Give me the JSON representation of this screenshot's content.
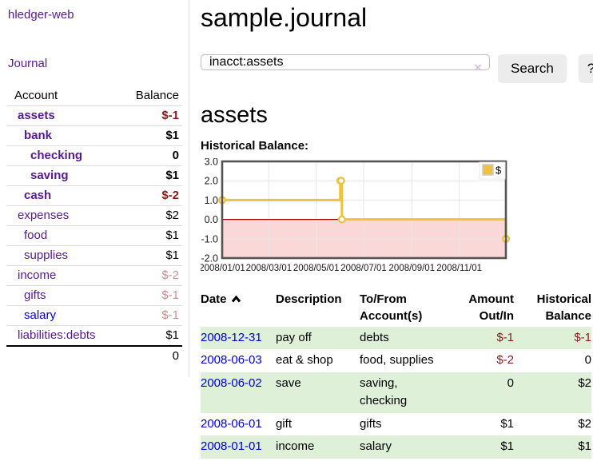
{
  "app": {
    "brand": "hledger-web"
  },
  "colors": {
    "link_purple": "#551a8b",
    "link_blue": "#0000dd",
    "negative": "#8b1a1a",
    "negative_dim": "#c98f8f",
    "row_stripe_green": "#dff0d8",
    "button_bg": "#ececec",
    "divider": "#dddddd"
  },
  "sidebar": {
    "nav_journal": "Journal",
    "accounts_table": {
      "headers": [
        "Account",
        "Balance"
      ],
      "rows": [
        {
          "account": "assets",
          "balance": "$-1",
          "depth": 1,
          "bold": true,
          "balance_style": "negative"
        },
        {
          "account": "bank",
          "balance": "$1",
          "depth": 2,
          "bold": true,
          "balance_style": "normal"
        },
        {
          "account": "checking",
          "balance": "0",
          "depth": 3,
          "bold": true,
          "balance_style": "normal"
        },
        {
          "account": "saving",
          "balance": "$1",
          "depth": 3,
          "bold": true,
          "balance_style": "normal"
        },
        {
          "account": "cash",
          "balance": "$-2",
          "depth": 2,
          "bold": true,
          "balance_style": "negative"
        },
        {
          "account": "expenses",
          "balance": "$2",
          "depth": 1,
          "bold": false,
          "balance_style": "normal"
        },
        {
          "account": "food",
          "balance": "$1",
          "depth": 2,
          "bold": false,
          "balance_style": "normal"
        },
        {
          "account": "supplies",
          "balance": "$1",
          "depth": 2,
          "bold": false,
          "balance_style": "normal"
        },
        {
          "account": "income",
          "balance": "$-2",
          "depth": 1,
          "bold": false,
          "balance_style": "negative_dim"
        },
        {
          "account": "gifts",
          "balance": "$-1",
          "depth": 2,
          "bold": false,
          "balance_style": "negative_dim"
        },
        {
          "account": "salary",
          "balance": "$-1",
          "depth": 2,
          "bold": false,
          "balance_style": "negative_dim",
          "link_color": "blue"
        },
        {
          "account": "liabilities:debts",
          "balance": "$1",
          "depth": 1,
          "bold": false,
          "balance_style": "normal"
        }
      ],
      "total": "0"
    }
  },
  "header": {
    "title": "sample.journal"
  },
  "search": {
    "value": "inacct:assets",
    "clear_icon": "×",
    "button_label": "Search",
    "help_label": "?"
  },
  "account_page": {
    "title": "assets",
    "chart_label": "Historical Balance:"
  },
  "chart_data": {
    "type": "line",
    "title": "Historical Balance:",
    "step": true,
    "series": [
      {
        "name": "$",
        "color": "#edc240",
        "points": [
          {
            "date": "2008-01-01",
            "value": 1
          },
          {
            "date": "2008-06-01",
            "value": 2
          },
          {
            "date": "2008-06-02",
            "value": 2
          },
          {
            "date": "2008-06-03",
            "value": 0
          },
          {
            "date": "2008-12-31",
            "value": -1
          }
        ]
      }
    ],
    "x_axis": {
      "start": "2008-01-01",
      "end": "2008-12-31",
      "tick_dates": [
        "2008-01-01",
        "2008-03-01",
        "2008-05-01",
        "2008-07-01",
        "2008-09-01",
        "2008-11-01"
      ],
      "tick_labels": [
        "2008/01/01",
        "2008/03/01",
        "2008/05/01",
        "2008/07/01",
        "2008/09/01",
        "2008/11/01"
      ]
    },
    "y_axis": {
      "min": -2,
      "max": 3,
      "ticks": [
        3,
        2,
        1,
        0,
        -1,
        -2
      ],
      "tick_labels": [
        "3.0",
        "2.0",
        "1.0",
        "0.0",
        "-1.0",
        "-2.0"
      ]
    },
    "grid": true,
    "legend": {
      "label": "$",
      "swatch_color": "#edc240",
      "position": "top-right"
    },
    "negative_region_color": "#fbd8d8",
    "zero_line_color": "#8b0000",
    "border_color": "#545454",
    "gridline_color": "#e6e6e6"
  },
  "register_table": {
    "headers": {
      "date": "Date",
      "description": "Description",
      "tofrom": "To/From Account(s)",
      "amount": "Amount Out/In",
      "balance": "Historical Balance"
    },
    "sort": {
      "column": "date",
      "direction": "ascending"
    },
    "rows": [
      {
        "date": "2008-12-31",
        "description": "pay off",
        "accounts": "debts",
        "amount": "$-1",
        "amount_style": "negative",
        "balance": "$-1",
        "balance_style": "negative"
      },
      {
        "date": "2008-06-03",
        "description": "eat & shop",
        "accounts": "food, supplies",
        "amount": "$-2",
        "amount_style": "negative",
        "balance": "0",
        "balance_style": "normal"
      },
      {
        "date": "2008-06-02",
        "description": "save",
        "accounts": "saving, checking",
        "amount": "0",
        "amount_style": "normal",
        "balance": "$2",
        "balance_style": "normal"
      },
      {
        "date": "2008-06-01",
        "description": "gift",
        "accounts": "gifts",
        "amount": "$1",
        "amount_style": "normal",
        "balance": "$2",
        "balance_style": "normal"
      },
      {
        "date": "2008-01-01",
        "description": "income",
        "accounts": "salary",
        "amount": "$1",
        "amount_style": "normal",
        "balance": "$1",
        "balance_style": "normal"
      }
    ]
  }
}
